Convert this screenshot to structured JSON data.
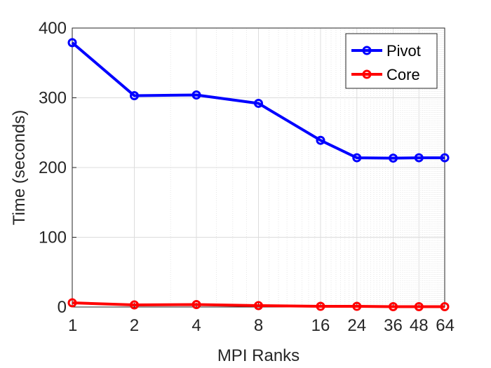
{
  "chart_data": {
    "type": "line",
    "title": "",
    "xlabel": "MPI Ranks",
    "ylabel": "Time (seconds)",
    "x_scale": "log2",
    "x": [
      1,
      2,
      4,
      8,
      16,
      24,
      36,
      48,
      64
    ],
    "x_ticks": [
      1,
      2,
      4,
      8,
      16,
      24,
      36,
      48,
      64
    ],
    "x_tick_labels": [
      "1",
      "2",
      "4",
      "8",
      "16",
      "24",
      "36",
      "48",
      "64"
    ],
    "xlim": [
      1,
      64
    ],
    "ylim": [
      0,
      400
    ],
    "y_ticks": [
      0,
      100,
      200,
      300,
      400
    ],
    "y_tick_labels": [
      "0",
      "100",
      "200",
      "300",
      "400"
    ],
    "grid": true,
    "legend_position": "top-right",
    "series": [
      {
        "name": "Pivot",
        "color": "#0000ff",
        "marker": "circle",
        "values": [
          379,
          303,
          304,
          292,
          239,
          214,
          213.5,
          214,
          214
        ]
      },
      {
        "name": "Core",
        "color": "#ff0000",
        "marker": "circle",
        "values": [
          6,
          3,
          3.5,
          2,
          1,
          1,
          0.5,
          0.5,
          0.5
        ]
      }
    ]
  }
}
